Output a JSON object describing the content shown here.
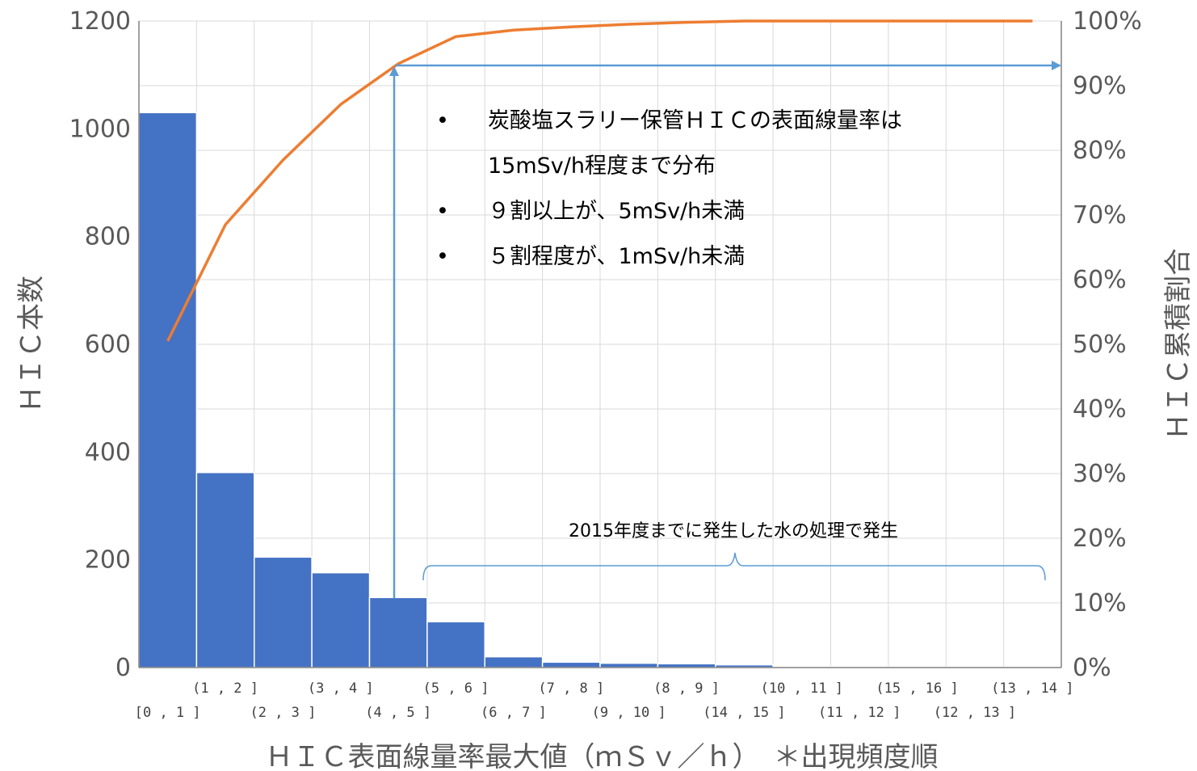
{
  "chart_data": {
    "type": "bar",
    "categories": [
      "[0 , 1 ]",
      "(1 , 2 ]",
      "(2 , 3 ]",
      "(3 , 4 ]",
      "(4 , 5 ]",
      "(5 , 6 ]",
      "(6 , 7 ]",
      "(7 , 8 ]",
      "(9 , 10 ]",
      "(8 , 9 ]",
      "(14 , 15 ]",
      "(10 , 11 ]",
      "(11 , 12 ]",
      "(15 , 16 ]",
      "(12 , 13 ]",
      "(13 , 14 ]"
    ],
    "series": [
      {
        "type": "bar",
        "axis": "left",
        "color": "#4472C4",
        "values": [
          1030,
          362,
          205,
          176,
          130,
          85,
          20,
          10,
          8,
          7,
          5,
          2,
          1,
          1,
          1,
          1
        ]
      },
      {
        "type": "line",
        "axis": "right",
        "color": "#ED7D31",
        "values": [
          0.505,
          0.685,
          0.785,
          0.871,
          0.934,
          0.976,
          0.986,
          0.991,
          0.995,
          0.998,
          1.0,
          1.0,
          1.0,
          1.0,
          1.0,
          1.0
        ]
      }
    ],
    "ylabel": "ＨＩＣ本数",
    "y2label": "ＨＩＣ累積割合",
    "xlabel": "ＨＩＣ表面線量率最大値（ｍＳｖ／ｈ）　＊出現頻度順",
    "ylim": [
      0,
      1200
    ],
    "y2lim": [
      0,
      1
    ],
    "yticks": [
      "0",
      "200",
      "400",
      "600",
      "800",
      "1000",
      "1200"
    ],
    "y2ticks": [
      "0%",
      "10%",
      "20%",
      "30%",
      "40%",
      "50%",
      "60%",
      "70%",
      "80%",
      "90%",
      "100%"
    ],
    "grid": true,
    "annotations": {
      "bullet": "•",
      "notes": [
        "炭酸塩スラリー保管ＨＩＣの表面線量率は",
        "15mSv/h程度まで分布",
        "９割以上が、5mSv/h未満",
        "５割程度が、1mSv/h未満"
      ],
      "brace_label": "2015年度までに発生した水の処理で発生",
      "arrow_color": "#5B9BD5"
    }
  }
}
